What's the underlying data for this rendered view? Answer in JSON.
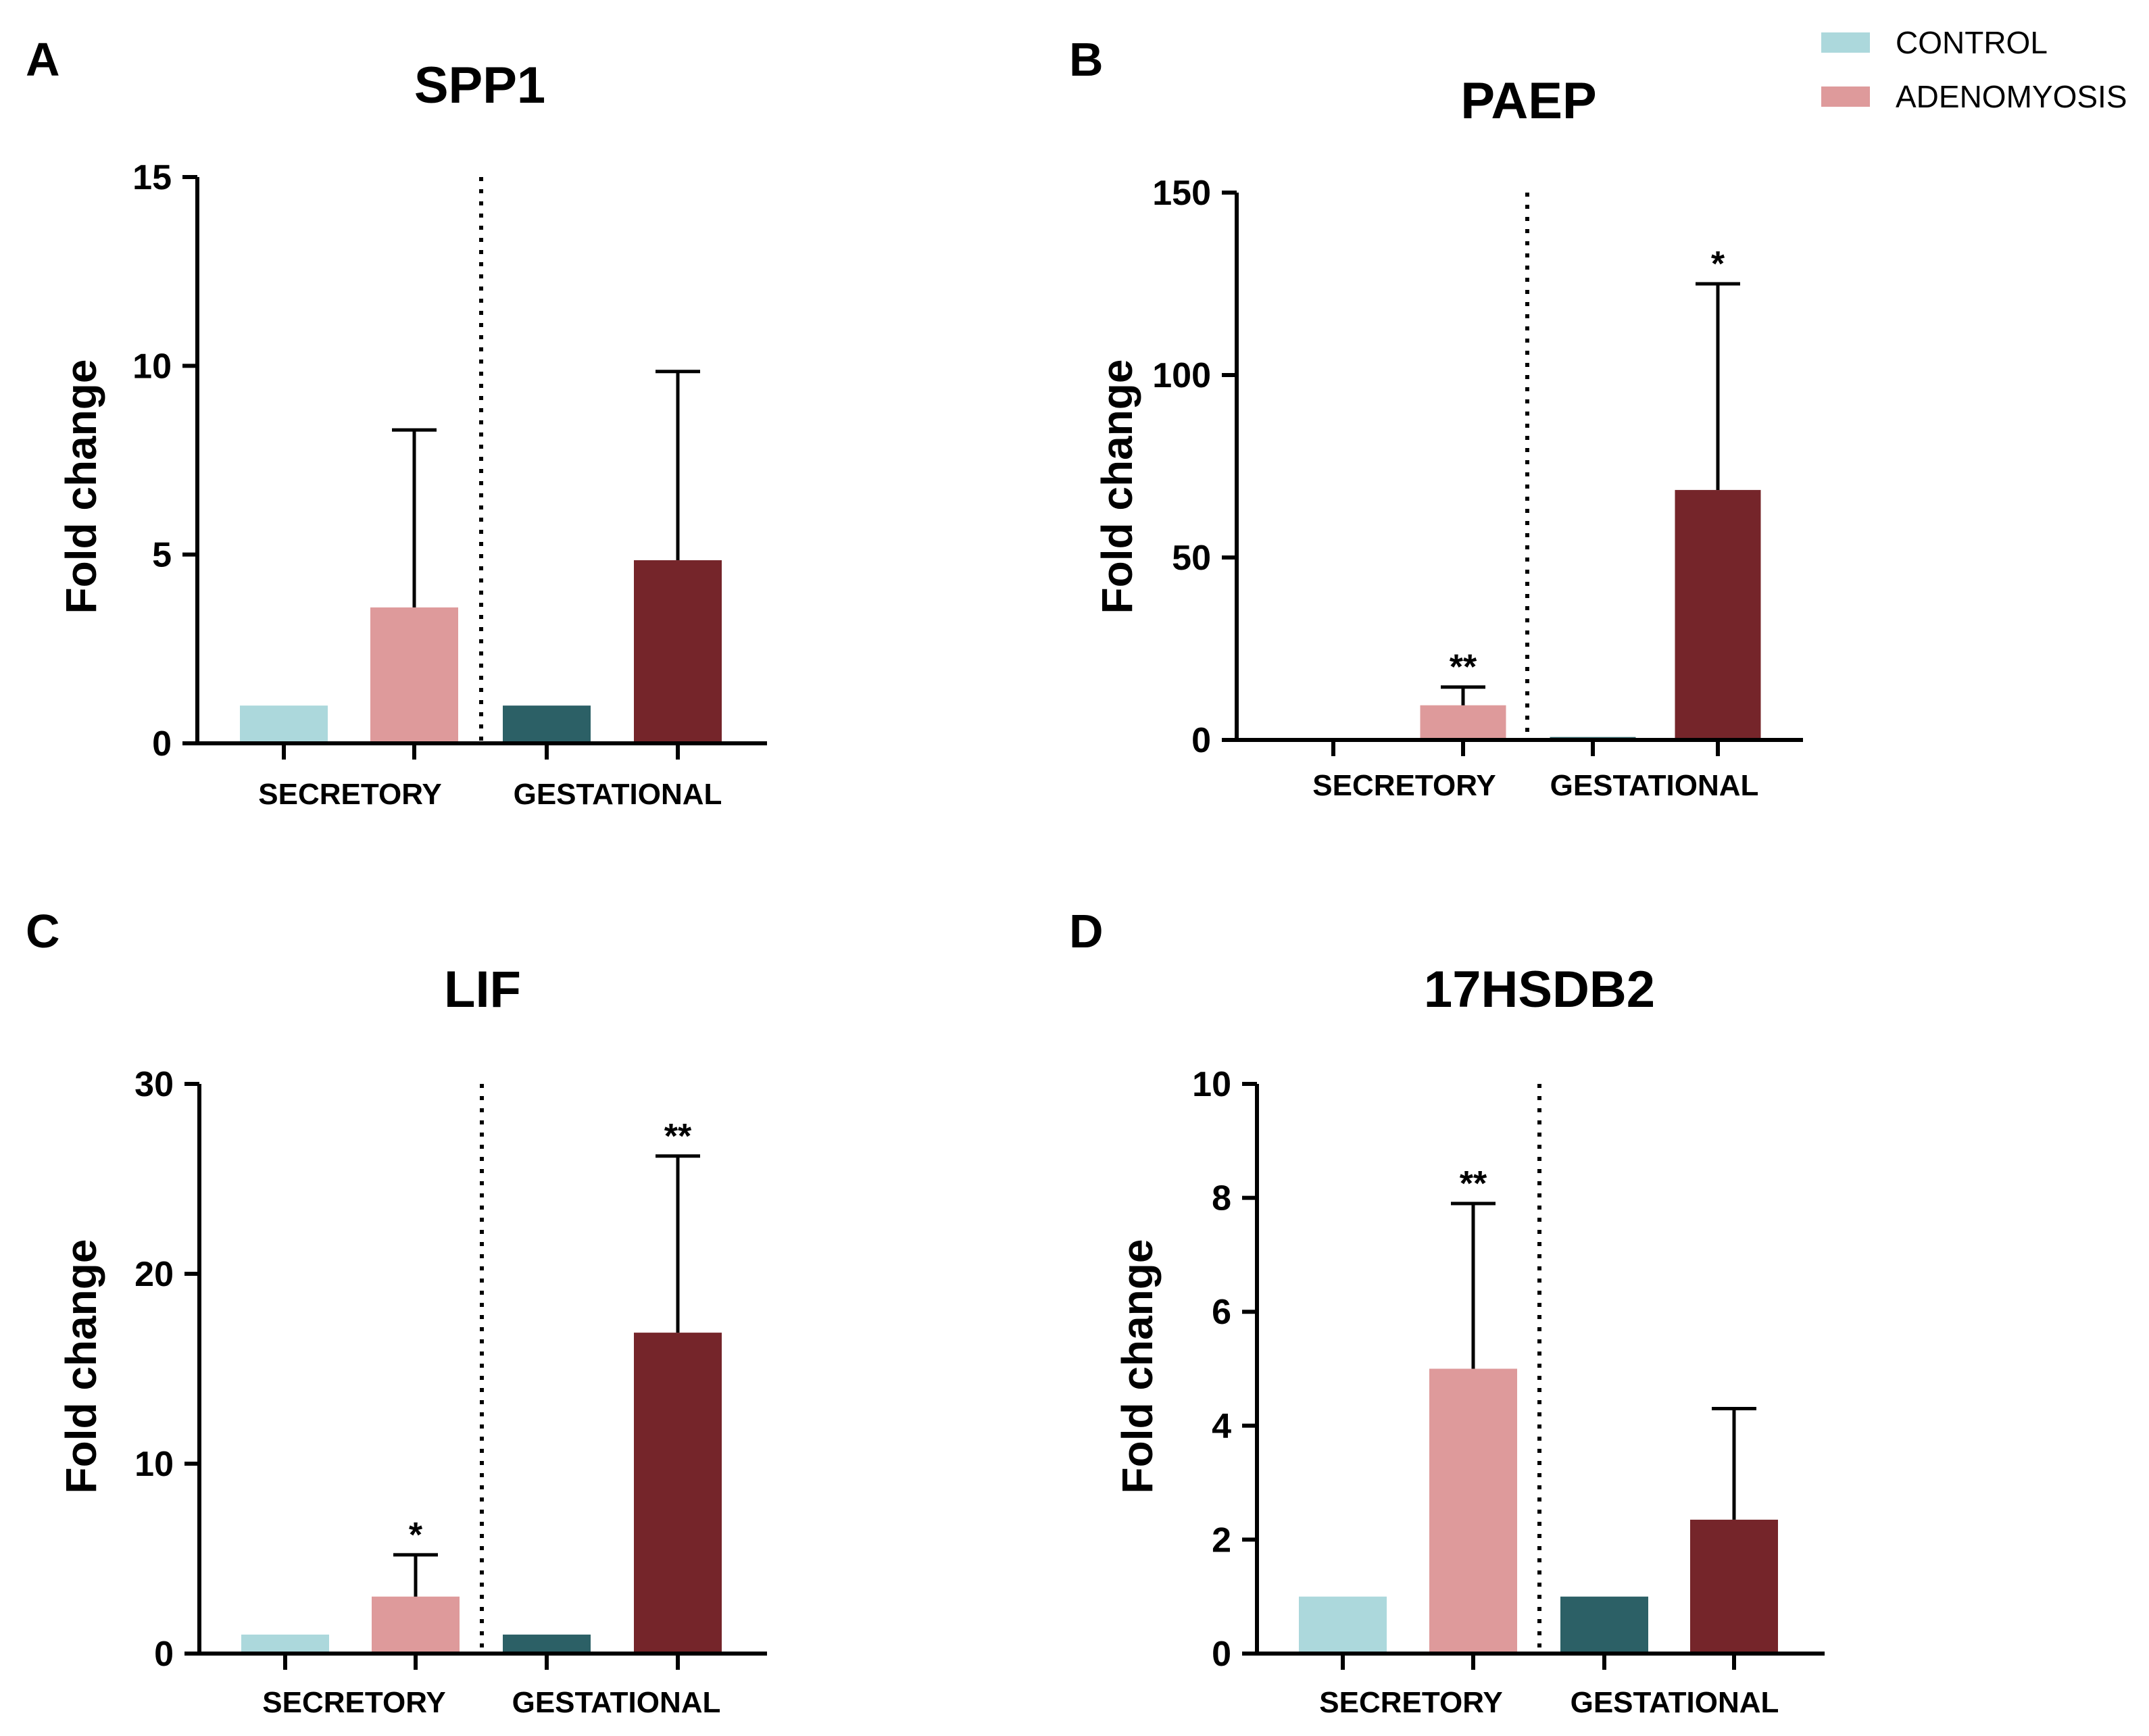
{
  "legend": [
    {
      "label": "CONTROL",
      "color": "#acd8dc"
    },
    {
      "label": "ADENOMYOSIS",
      "color": "#de9a9b"
    }
  ],
  "colors": {
    "secretory_control": "#acd8dc",
    "secretory_adenomyosis": "#de9a9b",
    "gestational_control": "#2c6066",
    "gestational_adenomyosis": "#75252a"
  },
  "chart_data": [
    {
      "panel": "A",
      "type": "bar",
      "title": "SPP1",
      "ylabel": "Fold change",
      "ylim": [
        0,
        15
      ],
      "yticks": [
        0,
        5,
        10,
        15
      ],
      "groups": [
        "SECRETORY",
        "GESTATIONAL"
      ],
      "series": [
        {
          "name": "SECRETORY CONTROL",
          "value": 1.0,
          "error": 0,
          "sig": ""
        },
        {
          "name": "SECRETORY ADENOMYOSIS",
          "value": 3.6,
          "error": 4.7,
          "sig": ""
        },
        {
          "name": "GESTATIONAL CONTROL",
          "value": 1.0,
          "error": 0,
          "sig": ""
        },
        {
          "name": "GESTATIONAL ADENOMYOSIS",
          "value": 4.85,
          "error": 5.0,
          "sig": ""
        }
      ]
    },
    {
      "panel": "B",
      "type": "bar",
      "title": "PAEP",
      "ylabel": "Fold change",
      "ylim": [
        0,
        150
      ],
      "yticks": [
        0,
        50,
        100,
        150
      ],
      "groups": [
        "SECRETORY",
        "GESTATIONAL"
      ],
      "series": [
        {
          "name": "SECRETORY CONTROL",
          "value": 0.3,
          "error": 0,
          "sig": ""
        },
        {
          "name": "SECRETORY ADENOMYOSIS",
          "value": 9.5,
          "error": 5.0,
          "sig": "**"
        },
        {
          "name": "GESTATIONAL CONTROL",
          "value": 0.8,
          "error": 0,
          "sig": ""
        },
        {
          "name": "GESTATIONAL ADENOMYOSIS",
          "value": 68.5,
          "error": 56.5,
          "sig": "*"
        }
      ]
    },
    {
      "panel": "C",
      "type": "bar",
      "title": "LIF",
      "ylabel": "Fold change",
      "ylim": [
        0,
        30
      ],
      "yticks": [
        0,
        10,
        20,
        30
      ],
      "groups": [
        "SECRETORY",
        "GESTATIONAL"
      ],
      "series": [
        {
          "name": "SECRETORY CONTROL",
          "value": 1.0,
          "error": 0,
          "sig": ""
        },
        {
          "name": "SECRETORY ADENOMYOSIS",
          "value": 3.0,
          "error": 2.2,
          "sig": "*"
        },
        {
          "name": "GESTATIONAL CONTROL",
          "value": 1.0,
          "error": 0,
          "sig": ""
        },
        {
          "name": "GESTATIONAL ADENOMYOSIS",
          "value": 16.9,
          "error": 9.3,
          "sig": "**"
        }
      ]
    },
    {
      "panel": "D",
      "type": "bar",
      "title": "17HSDB2",
      "ylabel": "Fold change",
      "ylim": [
        0,
        10
      ],
      "yticks": [
        0,
        2,
        4,
        6,
        8,
        10
      ],
      "groups": [
        "SECRETORY",
        "GESTATIONAL"
      ],
      "series": [
        {
          "name": "SECRETORY CONTROL",
          "value": 1.0,
          "error": 0,
          "sig": ""
        },
        {
          "name": "SECRETORY ADENOMYOSIS",
          "value": 5.0,
          "error": 2.9,
          "sig": "**"
        },
        {
          "name": "GESTATIONAL CONTROL",
          "value": 1.0,
          "error": 0,
          "sig": ""
        },
        {
          "name": "GESTATIONAL ADENOMYOSIS",
          "value": 2.35,
          "error": 1.95,
          "sig": ""
        }
      ]
    }
  ]
}
